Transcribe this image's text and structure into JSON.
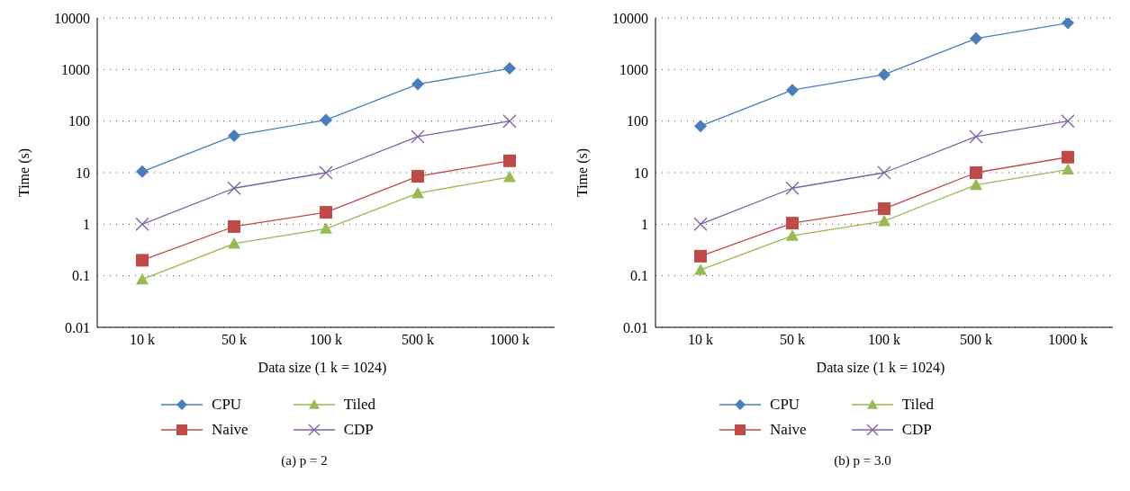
{
  "chart_data": [
    {
      "type": "line",
      "title": "(a) p = 2",
      "xlabel": "Data size (1 k = 1024)",
      "ylabel": "Time (s)",
      "categories": [
        "10 k",
        "50 k",
        "100 k",
        "500 k",
        "1000 k"
      ],
      "log": "y",
      "ylim": [
        0.01,
        10000
      ],
      "yticks": [
        0.01,
        0.1,
        1,
        10,
        100,
        1000,
        10000
      ],
      "grid": "y",
      "legend": "bottom",
      "series": [
        {
          "name": "CPU",
          "color": "#4a7ebb",
          "marker": "diamond",
          "values": [
            10.5,
            52,
            105,
            520,
            1050
          ]
        },
        {
          "name": "Naive",
          "color": "#be4b48",
          "marker": "square",
          "values": [
            0.2,
            0.9,
            1.7,
            8.5,
            17
          ]
        },
        {
          "name": "Tiled",
          "color": "#98b954",
          "marker": "triangle",
          "values": [
            0.085,
            0.42,
            0.82,
            4,
            8.2
          ]
        },
        {
          "name": "CDP",
          "color": "#7d60a0",
          "marker": "cross",
          "values": [
            1,
            5,
            10,
            50,
            100
          ]
        }
      ]
    },
    {
      "type": "line",
      "title": "(b) p = 3.0",
      "xlabel": "Data size (1 k = 1024)",
      "ylabel": "Time (s)",
      "categories": [
        "10 k",
        "50 k",
        "100 k",
        "500 k",
        "1000 k"
      ],
      "log": "y",
      "ylim": [
        0.01,
        10000
      ],
      "yticks": [
        0.01,
        0.1,
        1,
        10,
        100,
        1000,
        10000
      ],
      "grid": "y",
      "legend": "bottom",
      "series": [
        {
          "name": "CPU",
          "color": "#4a7ebb",
          "marker": "diamond",
          "values": [
            80,
            400,
            800,
            4000,
            8000
          ]
        },
        {
          "name": "Naive",
          "color": "#be4b48",
          "marker": "square",
          "values": [
            0.24,
            1.05,
            2,
            10,
            20
          ]
        },
        {
          "name": "Tiled",
          "color": "#98b954",
          "marker": "triangle",
          "values": [
            0.13,
            0.6,
            1.15,
            5.8,
            11.5
          ]
        },
        {
          "name": "CDP",
          "color": "#7d60a0",
          "marker": "cross",
          "values": [
            1,
            5,
            10,
            50,
            100
          ]
        }
      ]
    }
  ]
}
